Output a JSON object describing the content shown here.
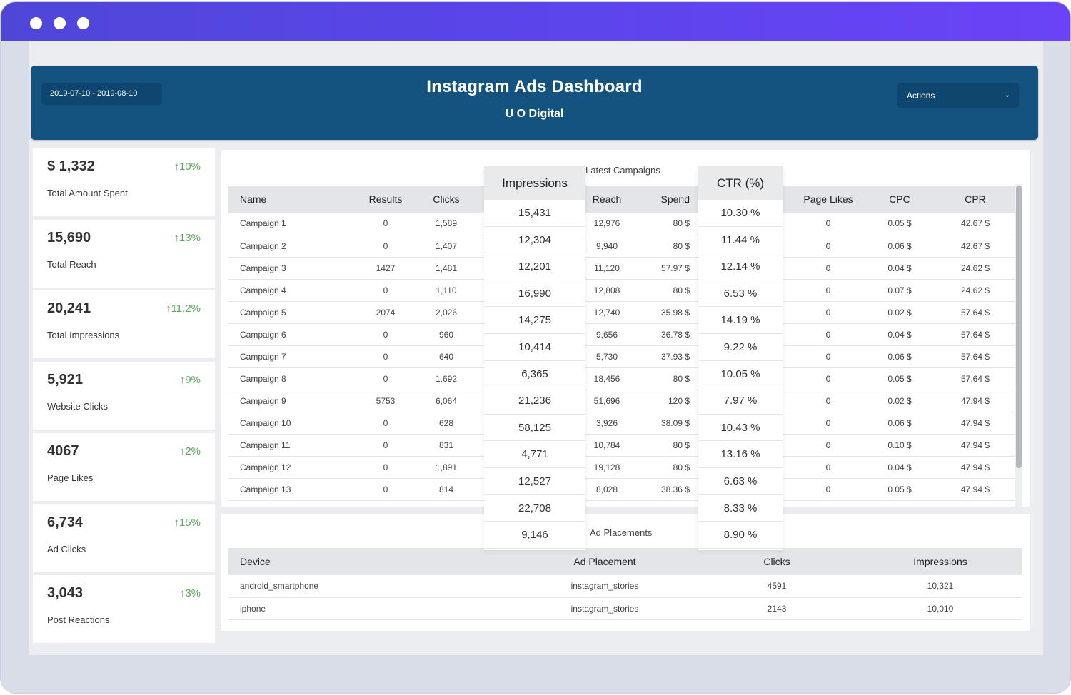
{
  "header": {
    "date_range": "2019-07-10 - 2019-08-10",
    "title": "Instagram Ads Dashboard",
    "subtitle": "U O Digital",
    "actions_label": "Actions"
  },
  "kpis": [
    {
      "value": "$ 1,332",
      "change": "↑10%",
      "label": "Total Amount Spent"
    },
    {
      "value": "15,690",
      "change": "↑13%",
      "label": "Total Reach"
    },
    {
      "value": "20,241",
      "change": "↑11.2%",
      "label": "Total Impressions"
    },
    {
      "value": "5,921",
      "change": "↑9%",
      "label": "Website Clicks"
    },
    {
      "value": "4067",
      "change": "↑2%",
      "label": "Page Likes"
    },
    {
      "value": "6,734",
      "change": "↑15%",
      "label": "Ad Clicks"
    },
    {
      "value": "3,043",
      "change": "↑3%",
      "label": "Post Reactions"
    }
  ],
  "campaigns": {
    "title": "Latest Campaigns",
    "columns": [
      "Name",
      "Results",
      "Clicks",
      "Impressions",
      "Reach",
      "Spend",
      "CTR (%)",
      "Page Likes",
      "CPC",
      "CPR"
    ],
    "rows": [
      [
        "Campaign 1",
        "0",
        "1,589",
        "15,431",
        "12,976",
        "80 $",
        "10.30 %",
        "0",
        "0.05 $",
        "42.67 $"
      ],
      [
        "Campaign 2",
        "0",
        "1,407",
        "12,304",
        "9,940",
        "80 $",
        "11.44 %",
        "0",
        "0.06 $",
        "42.67 $"
      ],
      [
        "Campaign 3",
        "1427",
        "1,481",
        "12,201",
        "11,120",
        "57.97 $",
        "12.14 %",
        "0",
        "0.04 $",
        "24.62 $"
      ],
      [
        "Campaign 4",
        "0",
        "1,110",
        "16,990",
        "12,808",
        "80 $",
        "6.53 %",
        "0",
        "0.07 $",
        "24.62 $"
      ],
      [
        "Campaign 5",
        "2074",
        "2,026",
        "14,275",
        "12,740",
        "35.98 $",
        "14.19 %",
        "0",
        "0.02 $",
        "57.64 $"
      ],
      [
        "Campaign 6",
        "0",
        "960",
        "10,414",
        "9,656",
        "36.78 $",
        "9.22 %",
        "0",
        "0.04 $",
        "57.64 $"
      ],
      [
        "Campaign 7",
        "0",
        "640",
        "6,365",
        "5,730",
        "37.93 $",
        "10.05 %",
        "0",
        "0.06 $",
        "57.64 $"
      ],
      [
        "Campaign 8",
        "0",
        "1,692",
        "21,236",
        "18,456",
        "80 $",
        "7.97 %",
        "0",
        "0.05 $",
        "57.64 $"
      ],
      [
        "Campaign 9",
        "5753",
        "6,064",
        "58,125",
        "51,696",
        "120 $",
        "10.43 %",
        "0",
        "0.02 $",
        "47.94 $"
      ],
      [
        "Campaign 10",
        "0",
        "628",
        "4,771",
        "3,926",
        "38.09 $",
        "13.16 %",
        "0",
        "0.06 $",
        "47.94 $"
      ],
      [
        "Campaign 11",
        "0",
        "831",
        "12,527",
        "10,784",
        "80 $",
        "6.63 %",
        "0",
        "0.10 $",
        "47.94 $"
      ],
      [
        "Campaign 12",
        "0",
        "1,891",
        "22,708",
        "19,128",
        "80 $",
        "8.33 %",
        "0",
        "0.04 $",
        "47.94 $"
      ],
      [
        "Campaign 13",
        "0",
        "814",
        "9,146",
        "8,028",
        "38.36 $",
        "8.90 %",
        "0",
        "0.05 $",
        "47.94 $"
      ]
    ],
    "float_impressions": [
      "15,431",
      "12,304",
      "12,201",
      "16,990",
      "14,275",
      "10,414",
      "6,365",
      "21,236",
      "58,125",
      "4,771",
      "12,527",
      "22,708",
      "9,146"
    ],
    "float_ctr": [
      "10.30 %",
      "11.44 %",
      "12.14 %",
      "6.53 %",
      "14.19 %",
      "9.22 %",
      "10.05 %",
      "7.97 %",
      "10.43 %",
      "13.16 %",
      "6.63 %",
      "8.33 %",
      "8.90 %"
    ]
  },
  "placements": {
    "title": "Ad Placements",
    "columns": [
      "Device",
      "Ad Placement",
      "Clicks",
      "Impressions"
    ],
    "rows": [
      [
        "android_smartphone",
        "instagram_stories",
        "4591",
        "10,321"
      ],
      [
        "iphone",
        "instagram_stories",
        "2143",
        "10,010"
      ]
    ]
  },
  "colors": {
    "titlebar_start": "#4f46d8",
    "titlebar_end": "#6a43f7",
    "header_bg": "#14527f",
    "positive_change": "#5aaa5a"
  }
}
